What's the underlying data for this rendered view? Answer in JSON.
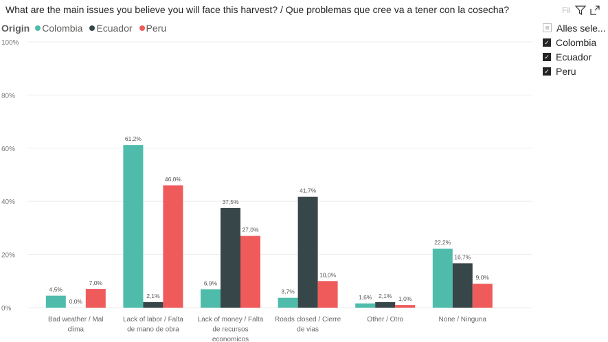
{
  "title": "What are the main issues you believe you will face this harvest? / Que problemas que cree va a tener con la cosecha?",
  "legend_title": "Origin",
  "filter": {
    "label": "Fil",
    "items": [
      {
        "label": "Alles sele...",
        "state": "partial"
      },
      {
        "label": "Colombia",
        "state": "checked"
      },
      {
        "label": "Ecuador",
        "state": "checked"
      },
      {
        "label": "Peru",
        "state": "checked"
      }
    ]
  },
  "chart_data": {
    "type": "bar",
    "title": "What are the main issues you believe you will face this harvest? / Que problemas que cree va a tener con la cosecha?",
    "categories": [
      [
        "Bad weather / Mal",
        "clima"
      ],
      [
        "Lack of labor / Falta",
        "de mano de obra"
      ],
      [
        "Lack of money / Falta",
        "de recursos",
        "economicos"
      ],
      [
        "Roads closed / Cierre",
        "de vias"
      ],
      [
        "Other / Otro"
      ],
      [
        "None / Ninguna"
      ]
    ],
    "series": [
      {
        "name": "Colombia",
        "color": "#4fbcab",
        "values": [
          4.5,
          61.2,
          6.9,
          3.7,
          1.6,
          22.2
        ],
        "labels": [
          "4,5%",
          "61,2%",
          "6,9%",
          "3,7%",
          "1,6%",
          "22,2%"
        ]
      },
      {
        "name": "Ecuador",
        "color": "#374649",
        "values": [
          0.0,
          2.1,
          37.5,
          41.7,
          2.1,
          16.7
        ],
        "labels": [
          "0,0%",
          "2,1%",
          "37,5%",
          "41,7%",
          "2,1%",
          "16,7%"
        ]
      },
      {
        "name": "Peru",
        "color": "#ef5b5b",
        "values": [
          7.0,
          46.0,
          27.0,
          10.0,
          1.0,
          9.0
        ],
        "labels": [
          "7,0%",
          "46,0%",
          "27,0%",
          "10,0%",
          "1,0%",
          "9,0%"
        ]
      }
    ],
    "ylim": [
      0,
      100
    ],
    "yticks": [
      {
        "v": 0,
        "label": "0%"
      },
      {
        "v": 20,
        "label": "20%"
      },
      {
        "v": 40,
        "label": "40%"
      },
      {
        "v": 60,
        "label": "60%"
      },
      {
        "v": 80,
        "label": "80%"
      },
      {
        "v": 100,
        "label": "100%"
      }
    ],
    "grid": true,
    "legend_position": "top-left"
  }
}
